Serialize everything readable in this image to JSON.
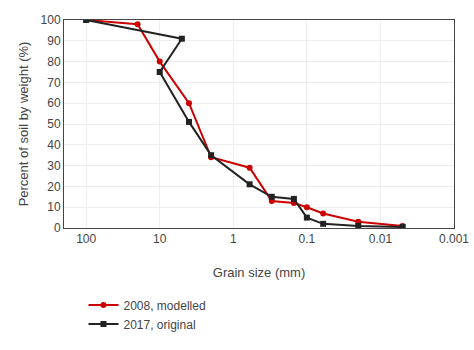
{
  "chart_data": {
    "type": "line",
    "xlabel": "Grain size (mm)",
    "ylabel": "Percent of soil by weight (%)",
    "log": "x",
    "xlim": [
      200,
      0.001
    ],
    "xticks": [
      100,
      10,
      1,
      0.1,
      0.01,
      0.001
    ],
    "ylim": [
      0,
      100
    ],
    "yticks": [
      0,
      10,
      20,
      30,
      40,
      50,
      60,
      70,
      80,
      90,
      100
    ],
    "grid": true,
    "legend": "below",
    "series": [
      {
        "name": "2008, modelled",
        "color": "#cc0000",
        "marker": "circle",
        "line_style": "solid",
        "x": [
          100,
          20,
          10,
          4,
          2,
          0.6,
          0.3,
          0.15,
          0.1,
          0.06,
          0.02,
          0.005
        ],
        "values": [
          100,
          98,
          80,
          60,
          34,
          29,
          13,
          12,
          10,
          7,
          3,
          1
        ]
      },
      {
        "name": "2017, original",
        "color": "#222222",
        "marker": "square",
        "line_style": "solid",
        "x": [
          100,
          5,
          10,
          4,
          2,
          0.6,
          0.3,
          0.15,
          0.1,
          0.06,
          0.02,
          0.005
        ],
        "values": [
          100,
          91,
          75,
          51,
          35,
          21,
          15,
          14,
          5,
          2,
          1,
          0.5
        ]
      }
    ]
  }
}
